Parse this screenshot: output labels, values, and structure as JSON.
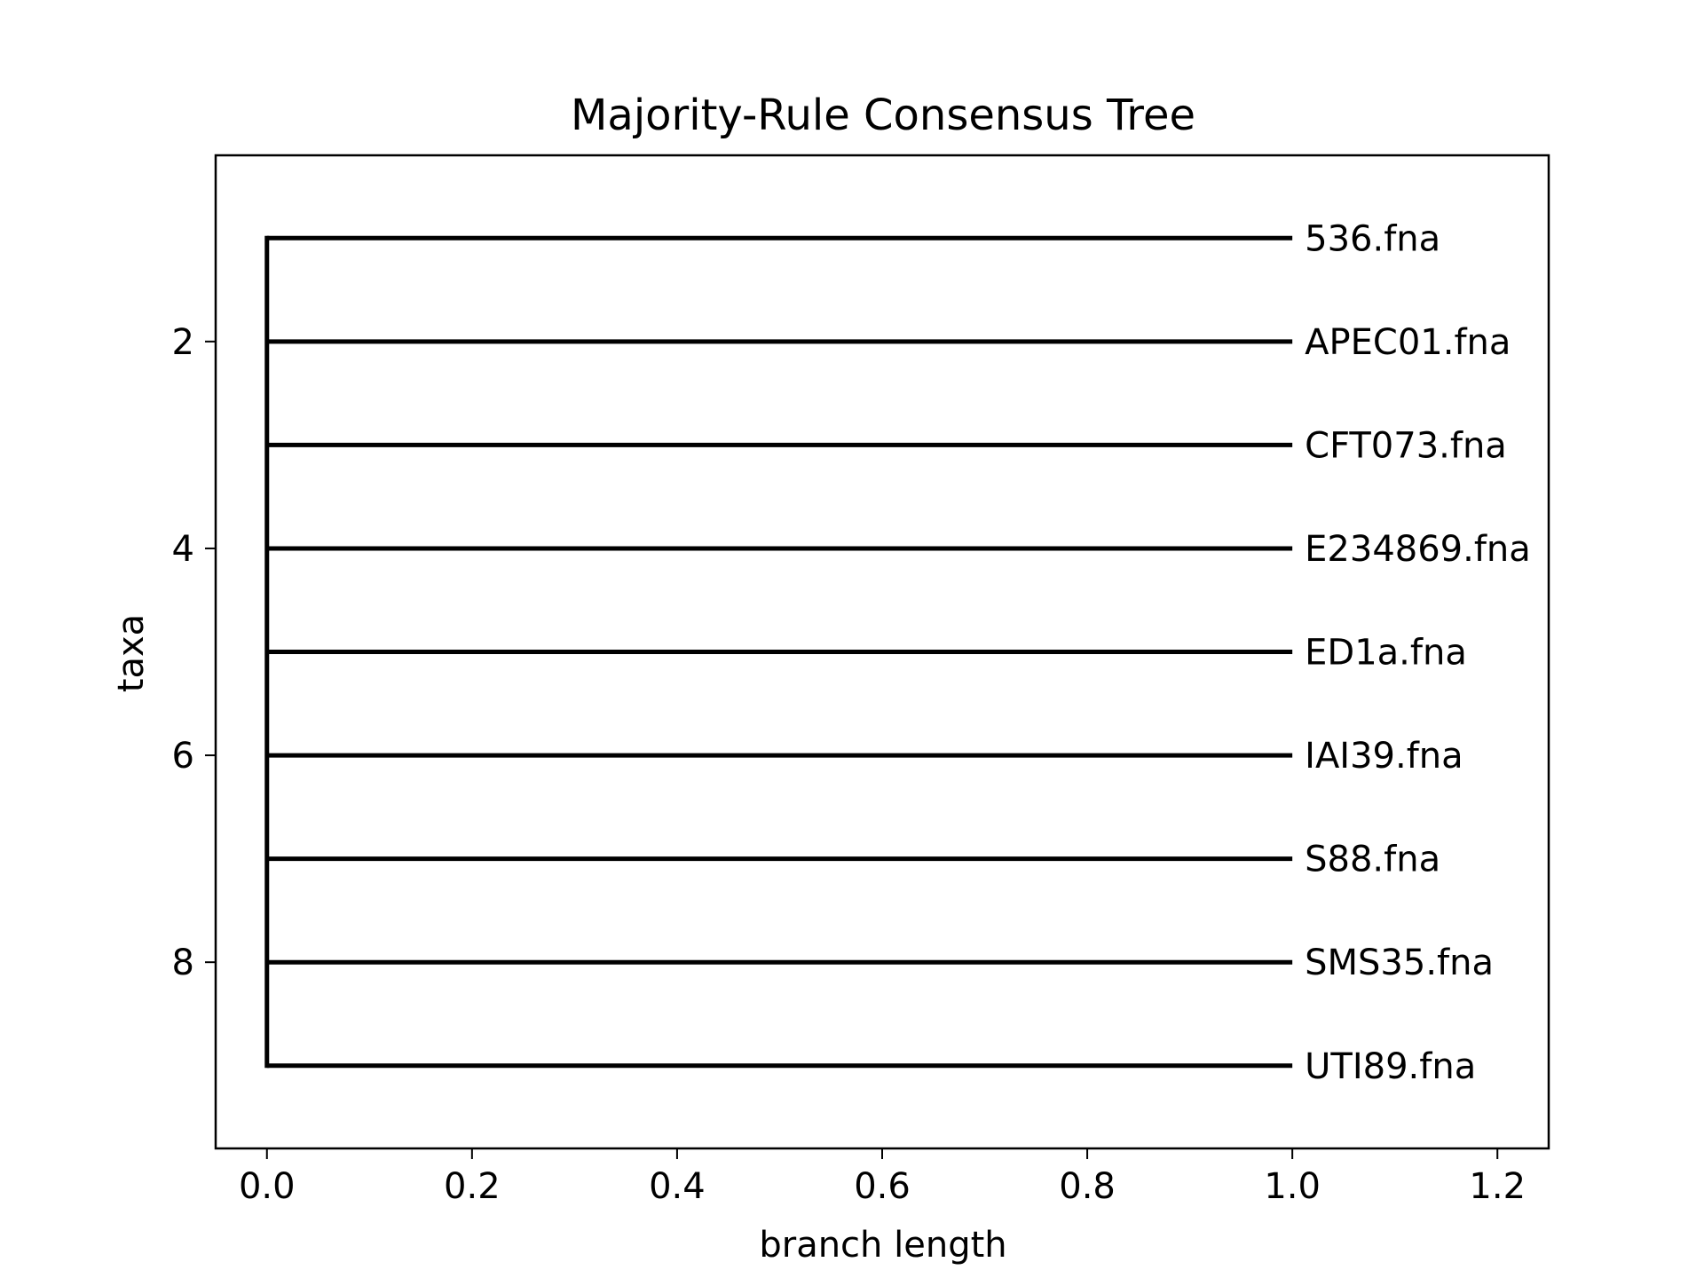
{
  "chart_data": {
    "type": "tree",
    "title": "Majority-Rule Consensus Tree",
    "xlabel": "branch length",
    "ylabel": "taxa",
    "xlim": [
      -0.05,
      1.25
    ],
    "ylim": [
      9.8,
      0.2
    ],
    "xticks": [
      0.0,
      0.2,
      0.4,
      0.6,
      0.8,
      1.0,
      1.2
    ],
    "xtick_labels": [
      "0.0",
      "0.2",
      "0.4",
      "0.6",
      "0.8",
      "1.0",
      "1.2"
    ],
    "yticks": [
      2,
      4,
      6,
      8
    ],
    "ytick_labels": [
      "2",
      "4",
      "6",
      "8"
    ],
    "grid": false,
    "legend": "none",
    "root_x": 0.0,
    "clade_span": [
      1,
      9
    ],
    "leaves": [
      {
        "label": "536.fna",
        "y": 1,
        "x_start": 0.0,
        "x_end": 1.0
      },
      {
        "label": "APEC01.fna",
        "y": 2,
        "x_start": 0.0,
        "x_end": 1.0
      },
      {
        "label": "CFT073.fna",
        "y": 3,
        "x_start": 0.0,
        "x_end": 1.0
      },
      {
        "label": "E234869.fna",
        "y": 4,
        "x_start": 0.0,
        "x_end": 1.0
      },
      {
        "label": "ED1a.fna",
        "y": 5,
        "x_start": 0.0,
        "x_end": 1.0
      },
      {
        "label": "IAI39.fna",
        "y": 6,
        "x_start": 0.0,
        "x_end": 1.0
      },
      {
        "label": "S88.fna",
        "y": 7,
        "x_start": 0.0,
        "x_end": 1.0
      },
      {
        "label": "SMS35.fna",
        "y": 8,
        "x_start": 0.0,
        "x_end": 1.0
      },
      {
        "label": "UTI89.fna",
        "y": 9,
        "x_start": 0.0,
        "x_end": 1.0
      }
    ],
    "line_color": "#000000"
  }
}
